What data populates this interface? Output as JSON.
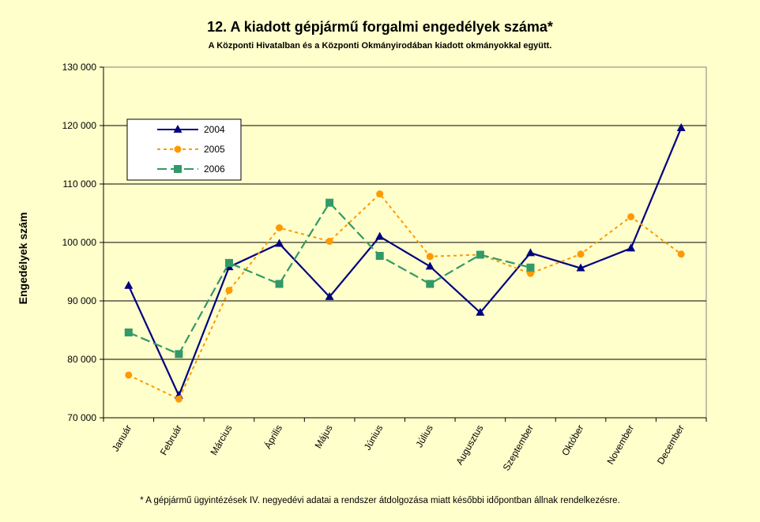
{
  "chart_data": {
    "type": "line",
    "title": "12. A  kiadott gépjármű forgalmi engedélyek száma*",
    "subtitle": "A  Központi Hivatalban és a Központi Okmányirodában kiadott okmányokkal együtt.",
    "ylabel": "Engedélyek szám",
    "xlabel": "",
    "footnote": "* A gépjármű ügyintézések IV. negyedévi adatai a rendszer átdolgozása miatt későbbi időpontban állnak rendelkezésre.",
    "ylim": [
      70000,
      130000
    ],
    "yticks": [
      70000,
      80000,
      90000,
      100000,
      110000,
      120000,
      130000
    ],
    "ytick_labels": [
      "70 000",
      "80 000",
      "90 000",
      "100 000",
      "110 000",
      "120 000",
      "130 000"
    ],
    "grid": "horizontal",
    "legend_position": "top-left",
    "categories": [
      "Január",
      "Február",
      "Március",
      "Április",
      "Május",
      "Június",
      "Július",
      "Augusztus",
      "Szeptember",
      "Október",
      "November",
      "December"
    ],
    "series": [
      {
        "name": "2004",
        "color": "#000080",
        "style": "solid",
        "marker": "triangle",
        "values": [
          92600,
          73800,
          95800,
          99800,
          90700,
          101000,
          95900,
          88000,
          98200,
          95600,
          99000,
          119600
        ]
      },
      {
        "name": "2005",
        "color": "#FF9900",
        "style": "dotted",
        "marker": "circle",
        "values": [
          77300,
          73200,
          91800,
          102500,
          100200,
          108300,
          97600,
          97900,
          94700,
          98000,
          104400,
          98000
        ]
      },
      {
        "name": "2006",
        "color": "#339966",
        "style": "dashed",
        "marker": "square",
        "values": [
          84600,
          80900,
          96500,
          92900,
          106800,
          97700,
          92900,
          97900,
          95700,
          null,
          null,
          null
        ]
      }
    ]
  }
}
